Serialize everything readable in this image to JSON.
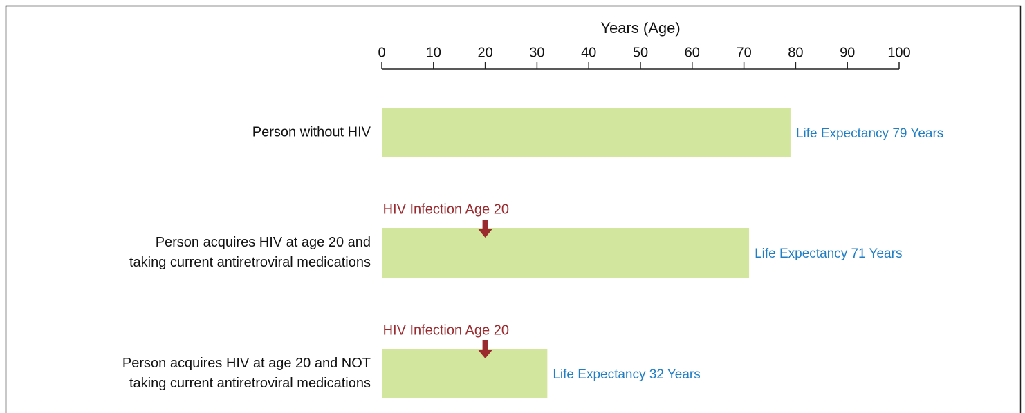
{
  "chart_data": {
    "type": "hbar",
    "xlabel": "Years (Age)",
    "categories": [
      "Person without HIV",
      "Person acquires HIV at age 20 and\ntaking current antiretroviral medications",
      "Person acquires HIV at age 20 and NOT\ntaking current antiretroviral medications"
    ],
    "values": [
      79,
      71,
      32
    ],
    "value_labels": [
      "Life Expectancy 79 Years",
      "Life Expectancy 71 Years",
      "Life Expectancy 32 Years"
    ],
    "color": "#d3e69d",
    "label_color": "#1f7ec4",
    "annotations": [
      null,
      {
        "text": "HIV Infection Age 20",
        "x": 20
      },
      {
        "text": "HIV Infection Age 20",
        "x": 20
      }
    ],
    "annotation_color": "#9a2a2e",
    "xlim": [
      0,
      100
    ],
    "xticks": [
      0,
      10,
      20,
      30,
      40,
      50,
      60,
      70,
      80,
      90,
      100
    ]
  }
}
